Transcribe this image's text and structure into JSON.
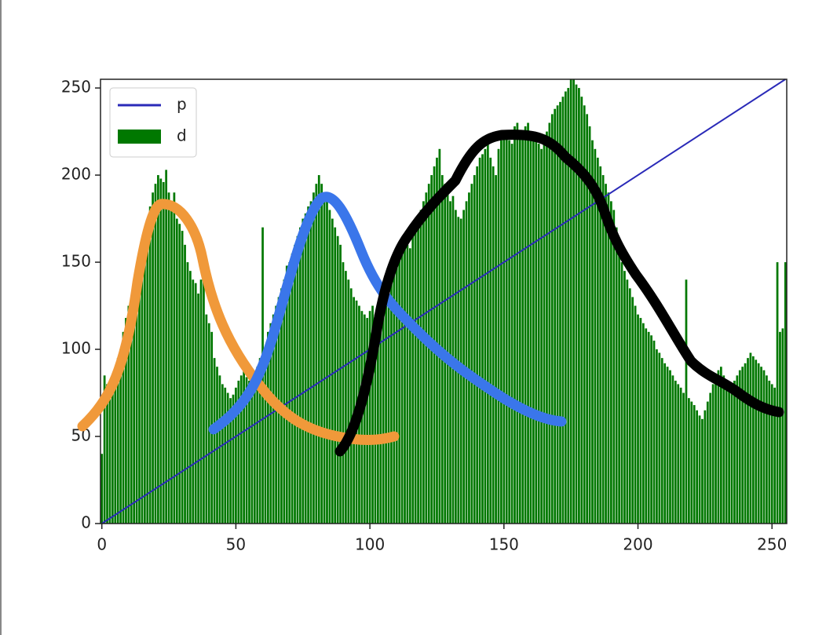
{
  "chart_data": {
    "type": "bar",
    "xlim": [
      -0.5,
      255.5
    ],
    "ylim": [
      0,
      255
    ],
    "xticks": [
      0,
      50,
      100,
      150,
      200,
      250
    ],
    "yticks": [
      0,
      50,
      100,
      150,
      200,
      250
    ],
    "legend": "upper left",
    "series": [
      {
        "name": "p",
        "type": "line",
        "color": "#2a2ab8",
        "x": [
          0,
          255
        ],
        "values": [
          0,
          255
        ]
      },
      {
        "name": "d",
        "type": "bar",
        "color": "#007800",
        "x": [
          0,
          1,
          2,
          3,
          4,
          5,
          6,
          7,
          8,
          9,
          10,
          11,
          12,
          13,
          14,
          15,
          16,
          17,
          18,
          19,
          20,
          21,
          22,
          23,
          24,
          25,
          26,
          27,
          28,
          29,
          30,
          31,
          32,
          33,
          34,
          35,
          36,
          37,
          38,
          39,
          40,
          41,
          42,
          43,
          44,
          45,
          46,
          47,
          48,
          49,
          50,
          51,
          52,
          53,
          54,
          55,
          56,
          57,
          58,
          59,
          60,
          61,
          62,
          63,
          64,
          65,
          66,
          67,
          68,
          69,
          70,
          71,
          72,
          73,
          74,
          75,
          76,
          77,
          78,
          79,
          80,
          81,
          82,
          83,
          84,
          85,
          86,
          87,
          88,
          89,
          90,
          91,
          92,
          93,
          94,
          95,
          96,
          97,
          98,
          99,
          100,
          101,
          102,
          103,
          104,
          105,
          106,
          107,
          108,
          109,
          110,
          111,
          112,
          113,
          114,
          115,
          116,
          117,
          118,
          119,
          120,
          121,
          122,
          123,
          124,
          125,
          126,
          127,
          128,
          129,
          130,
          131,
          132,
          133,
          134,
          135,
          136,
          137,
          138,
          139,
          140,
          141,
          142,
          143,
          144,
          145,
          146,
          147,
          148,
          149,
          150,
          151,
          152,
          153,
          154,
          155,
          156,
          157,
          158,
          159,
          160,
          161,
          162,
          163,
          164,
          165,
          166,
          167,
          168,
          169,
          170,
          171,
          172,
          173,
          174,
          175,
          176,
          177,
          178,
          179,
          180,
          181,
          182,
          183,
          184,
          185,
          186,
          187,
          188,
          189,
          190,
          191,
          192,
          193,
          194,
          195,
          196,
          197,
          198,
          199,
          200,
          201,
          202,
          203,
          204,
          205,
          206,
          207,
          208,
          209,
          210,
          211,
          212,
          213,
          214,
          215,
          216,
          217,
          218,
          219,
          220,
          221,
          222,
          223,
          224,
          225,
          226,
          227,
          228,
          229,
          230,
          231,
          232,
          233,
          234,
          235,
          236,
          237,
          238,
          239,
          240,
          241,
          242,
          243,
          244,
          245,
          246,
          247,
          248,
          249,
          250,
          251,
          252,
          253,
          254,
          255
        ],
        "values": [
          40,
          85,
          80,
          78,
          82,
          88,
          95,
          100,
          110,
          118,
          125,
          128,
          130,
          125,
          140,
          150,
          160,
          170,
          182,
          190,
          195,
          200,
          198,
          196,
          203,
          190,
          185,
          190,
          175,
          172,
          168,
          160,
          150,
          145,
          140,
          138,
          132,
          140,
          145,
          120,
          115,
          110,
          95,
          90,
          85,
          80,
          78,
          75,
          72,
          74,
          78,
          82,
          85,
          88,
          84,
          82,
          80,
          85,
          90,
          95,
          170,
          100,
          110,
          115,
          120,
          125,
          130,
          135,
          140,
          148,
          150,
          155,
          160,
          165,
          170,
          175,
          178,
          182,
          185,
          190,
          195,
          200,
          195,
          190,
          185,
          180,
          175,
          170,
          165,
          160,
          150,
          145,
          140,
          135,
          130,
          128,
          125,
          122,
          120,
          118,
          122,
          125,
          120,
          118,
          125,
          128,
          130,
          135,
          140,
          145,
          150,
          155,
          160,
          165,
          160,
          158,
          165,
          170,
          175,
          180,
          185,
          190,
          195,
          200,
          205,
          210,
          215,
          200,
          195,
          190,
          185,
          188,
          180,
          176,
          175,
          180,
          185,
          190,
          195,
          200,
          205,
          210,
          212,
          215,
          218,
          210,
          205,
          200,
          215,
          220,
          222,
          225,
          220,
          218,
          228,
          230,
          225,
          222,
          228,
          230,
          225,
          220,
          222,
          218,
          215,
          220,
          225,
          230,
          235,
          238,
          240,
          242,
          245,
          248,
          250,
          255,
          255,
          252,
          250,
          245,
          240,
          235,
          228,
          220,
          215,
          210,
          205,
          200,
          195,
          190,
          185,
          180,
          170,
          160,
          150,
          145,
          140,
          135,
          130,
          125,
          120,
          118,
          115,
          112,
          110,
          108,
          105,
          100,
          98,
          95,
          92,
          90,
          88,
          85,
          82,
          80,
          78,
          75,
          140,
          72,
          70,
          68,
          65,
          62,
          60,
          65,
          70,
          75,
          80,
          85,
          88,
          90,
          85,
          82,
          80,
          78,
          82,
          85,
          88,
          90,
          92,
          95,
          98,
          96,
          94,
          92,
          90,
          88,
          85,
          82,
          80,
          78,
          150,
          110,
          112,
          150
        ]
      }
    ]
  }
}
